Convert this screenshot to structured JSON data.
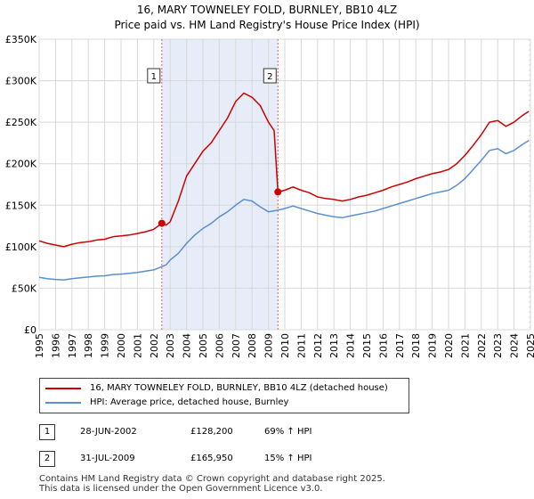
{
  "chart_data": {
    "type": "line",
    "title": "16, MARY TOWNELEY FOLD, BURNLEY, BB10 4LZ",
    "subtitle": "Price paid vs. HM Land Registry's House Price Index (HPI)",
    "xlabel": "",
    "ylabel": "",
    "xlim": [
      1995,
      2025
    ],
    "ylim": [
      0,
      350000
    ],
    "y_ticks": [
      0,
      50000,
      100000,
      150000,
      200000,
      250000,
      300000,
      350000
    ],
    "y_tick_labels": [
      "£0",
      "£50K",
      "£100K",
      "£150K",
      "£200K",
      "£250K",
      "£300K",
      "£350K"
    ],
    "x_ticks": [
      1995,
      1996,
      1997,
      1998,
      1999,
      2000,
      2001,
      2002,
      2003,
      2004,
      2005,
      2006,
      2007,
      2008,
      2009,
      2010,
      2011,
      2012,
      2013,
      2014,
      2015,
      2016,
      2017,
      2018,
      2019,
      2020,
      2021,
      2022,
      2023,
      2024,
      2025
    ],
    "x_tick_labels": [
      "1995",
      "1996",
      "1997",
      "1998",
      "1999",
      "2000",
      "2001",
      "2002",
      "2003",
      "2004",
      "2005",
      "2006",
      "2007",
      "2008",
      "2009",
      "2010",
      "2011",
      "2012",
      "2013",
      "2014",
      "2015",
      "2016",
      "2017",
      "2018",
      "2019",
      "2020",
      "2021",
      "2022",
      "2023",
      "2024",
      "2025"
    ],
    "grid": true,
    "shaded_region": [
      2002.49,
      2009.58
    ],
    "future_hatch_from": 2024.9,
    "series": [
      {
        "name": "16, MARY TOWNELEY FOLD, BURNLEY, BB10 4LZ (detached house)",
        "color": "#cc0000",
        "points": [
          [
            1995.0,
            107000
          ],
          [
            1995.5,
            104000
          ],
          [
            1996.0,
            102000
          ],
          [
            1996.5,
            100000
          ],
          [
            1997.0,
            103000
          ],
          [
            1997.5,
            105000
          ],
          [
            1998.0,
            106000
          ],
          [
            1998.5,
            108000
          ],
          [
            1999.0,
            109000
          ],
          [
            1999.5,
            112000
          ],
          [
            2000.0,
            113000
          ],
          [
            2000.5,
            114000
          ],
          [
            2001.0,
            116000
          ],
          [
            2001.5,
            118000
          ],
          [
            2002.0,
            121000
          ],
          [
            2002.49,
            128200
          ],
          [
            2002.75,
            126000
          ],
          [
            2003.0,
            130000
          ],
          [
            2003.5,
            155000
          ],
          [
            2004.0,
            185000
          ],
          [
            2004.5,
            200000
          ],
          [
            2005.0,
            215000
          ],
          [
            2005.5,
            225000
          ],
          [
            2006.0,
            240000
          ],
          [
            2006.5,
            255000
          ],
          [
            2007.0,
            275000
          ],
          [
            2007.5,
            285000
          ],
          [
            2008.0,
            280000
          ],
          [
            2008.5,
            270000
          ],
          [
            2009.0,
            250000
          ],
          [
            2009.35,
            240000
          ],
          [
            2009.58,
            165950
          ],
          [
            2010.0,
            168000
          ],
          [
            2010.5,
            172000
          ],
          [
            2011.0,
            168000
          ],
          [
            2011.5,
            165000
          ],
          [
            2012.0,
            160000
          ],
          [
            2012.5,
            158000
          ],
          [
            2013.0,
            157000
          ],
          [
            2013.5,
            155000
          ],
          [
            2014.0,
            157000
          ],
          [
            2014.5,
            160000
          ],
          [
            2015.0,
            162000
          ],
          [
            2015.5,
            165000
          ],
          [
            2016.0,
            168000
          ],
          [
            2016.5,
            172000
          ],
          [
            2017.0,
            175000
          ],
          [
            2017.5,
            178000
          ],
          [
            2018.0,
            182000
          ],
          [
            2018.5,
            185000
          ],
          [
            2019.0,
            188000
          ],
          [
            2019.5,
            190000
          ],
          [
            2020.0,
            193000
          ],
          [
            2020.5,
            200000
          ],
          [
            2021.0,
            210000
          ],
          [
            2021.5,
            222000
          ],
          [
            2022.0,
            235000
          ],
          [
            2022.5,
            250000
          ],
          [
            2023.0,
            252000
          ],
          [
            2023.5,
            245000
          ],
          [
            2024.0,
            250000
          ],
          [
            2024.5,
            258000
          ],
          [
            2024.9,
            263000
          ]
        ]
      },
      {
        "name": "HPI: Average price, detached house, Burnley",
        "color": "#5b8fd0",
        "points": [
          [
            1995.0,
            63000
          ],
          [
            1995.5,
            61500
          ],
          [
            1996.0,
            60500
          ],
          [
            1996.5,
            60000
          ],
          [
            1997.0,
            61500
          ],
          [
            1997.5,
            62500
          ],
          [
            1998.0,
            63500
          ],
          [
            1998.5,
            64500
          ],
          [
            1999.0,
            65000
          ],
          [
            1999.5,
            66500
          ],
          [
            2000.0,
            67000
          ],
          [
            2000.5,
            68000
          ],
          [
            2001.0,
            69000
          ],
          [
            2001.5,
            70500
          ],
          [
            2002.0,
            72000
          ],
          [
            2002.49,
            76000
          ],
          [
            2002.75,
            78000
          ],
          [
            2003.0,
            84000
          ],
          [
            2003.5,
            92000
          ],
          [
            2004.0,
            104000
          ],
          [
            2004.5,
            114000
          ],
          [
            2005.0,
            122000
          ],
          [
            2005.5,
            128000
          ],
          [
            2006.0,
            136000
          ],
          [
            2006.5,
            142000
          ],
          [
            2007.0,
            150000
          ],
          [
            2007.5,
            157000
          ],
          [
            2008.0,
            155000
          ],
          [
            2008.5,
            148000
          ],
          [
            2009.0,
            142000
          ],
          [
            2009.58,
            144000
          ],
          [
            2010.0,
            146000
          ],
          [
            2010.5,
            149000
          ],
          [
            2011.0,
            146000
          ],
          [
            2011.5,
            143000
          ],
          [
            2012.0,
            140000
          ],
          [
            2012.5,
            138000
          ],
          [
            2013.0,
            136000
          ],
          [
            2013.5,
            135000
          ],
          [
            2014.0,
            137000
          ],
          [
            2014.5,
            139000
          ],
          [
            2015.0,
            141000
          ],
          [
            2015.5,
            143000
          ],
          [
            2016.0,
            146000
          ],
          [
            2016.5,
            149000
          ],
          [
            2017.0,
            152000
          ],
          [
            2017.5,
            155000
          ],
          [
            2018.0,
            158000
          ],
          [
            2018.5,
            161000
          ],
          [
            2019.0,
            164000
          ],
          [
            2019.5,
            166000
          ],
          [
            2020.0,
            168000
          ],
          [
            2020.5,
            174000
          ],
          [
            2021.0,
            182000
          ],
          [
            2021.5,
            193000
          ],
          [
            2022.0,
            204000
          ],
          [
            2022.5,
            216000
          ],
          [
            2023.0,
            218000
          ],
          [
            2023.5,
            212000
          ],
          [
            2024.0,
            216000
          ],
          [
            2024.5,
            223000
          ],
          [
            2024.9,
            228000
          ]
        ]
      }
    ],
    "markers": [
      {
        "label": "1",
        "x": 2002.49,
        "y": 128200
      },
      {
        "label": "2",
        "x": 2009.58,
        "y": 165950
      }
    ]
  },
  "legend": {
    "items": [
      {
        "label": "16, MARY TOWNELEY FOLD, BURNLEY, BB10 4LZ (detached house)",
        "color": "#cc0000"
      },
      {
        "label": "HPI: Average price, detached house, Burnley",
        "color": "#5b8fd0"
      }
    ]
  },
  "sales": [
    {
      "num": "1",
      "date": "28-JUN-2002",
      "price": "£128,200",
      "hpi": "69% ↑ HPI"
    },
    {
      "num": "2",
      "date": "31-JUL-2009",
      "price": "£165,950",
      "hpi": "15% ↑ HPI"
    }
  ],
  "footer": {
    "line1": "Contains HM Land Registry data © Crown copyright and database right 2025.",
    "line2": "This data is licensed under the Open Government Licence v3.0."
  }
}
